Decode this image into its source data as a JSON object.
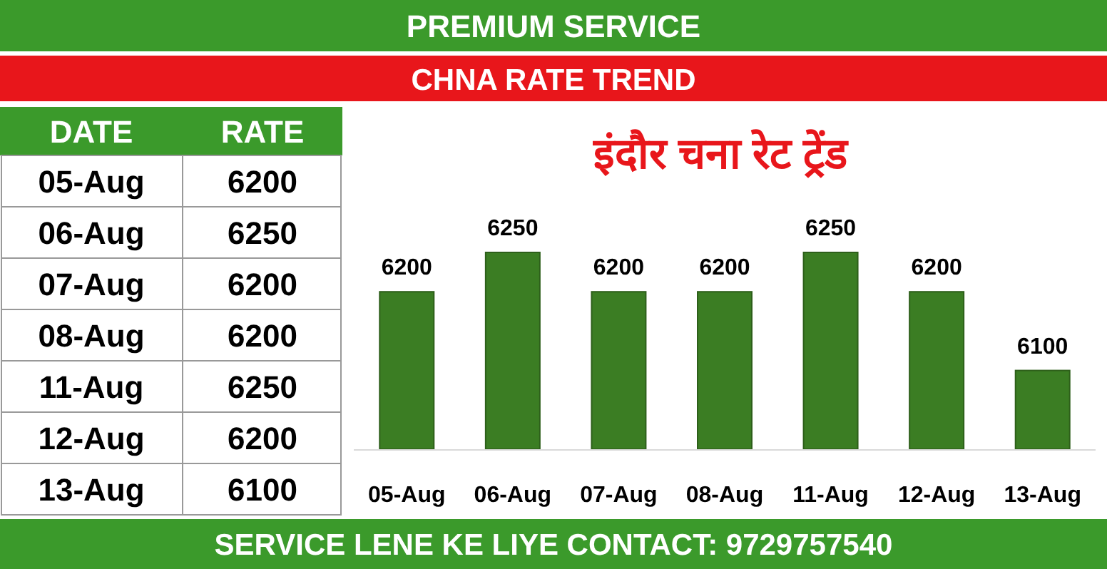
{
  "chart_data": [
    {
      "type": "other",
      "annotations": [
        "DATE",
        "RATE",
        "05-Aug",
        "6200",
        "06-Aug",
        "6250",
        "07-Aug",
        "6200",
        "08-Aug",
        "6200",
        "11-Aug",
        "6250",
        "12-Aug",
        "6200",
        "13-Aug",
        "6100"
      ]
    },
    {
      "type": "bar",
      "title": "इंदौर चना रेट ट्रेंड",
      "categories": [
        "05-Aug",
        "06-Aug",
        "07-Aug",
        "08-Aug",
        "11-Aug",
        "12-Aug",
        "13-Aug"
      ],
      "values": [
        6200,
        6250,
        6200,
        6200,
        6250,
        6200,
        6100
      ],
      "color": "#3b7d23",
      "data_labels": true,
      "ylim": [
        6000,
        6250
      ],
      "annotations": [
        "PREMIUM SERVICE",
        "CHNA RATE TREND",
        "SERVICE LENE KE LIYE CONTACT: 9729757540"
      ]
    }
  ]
}
